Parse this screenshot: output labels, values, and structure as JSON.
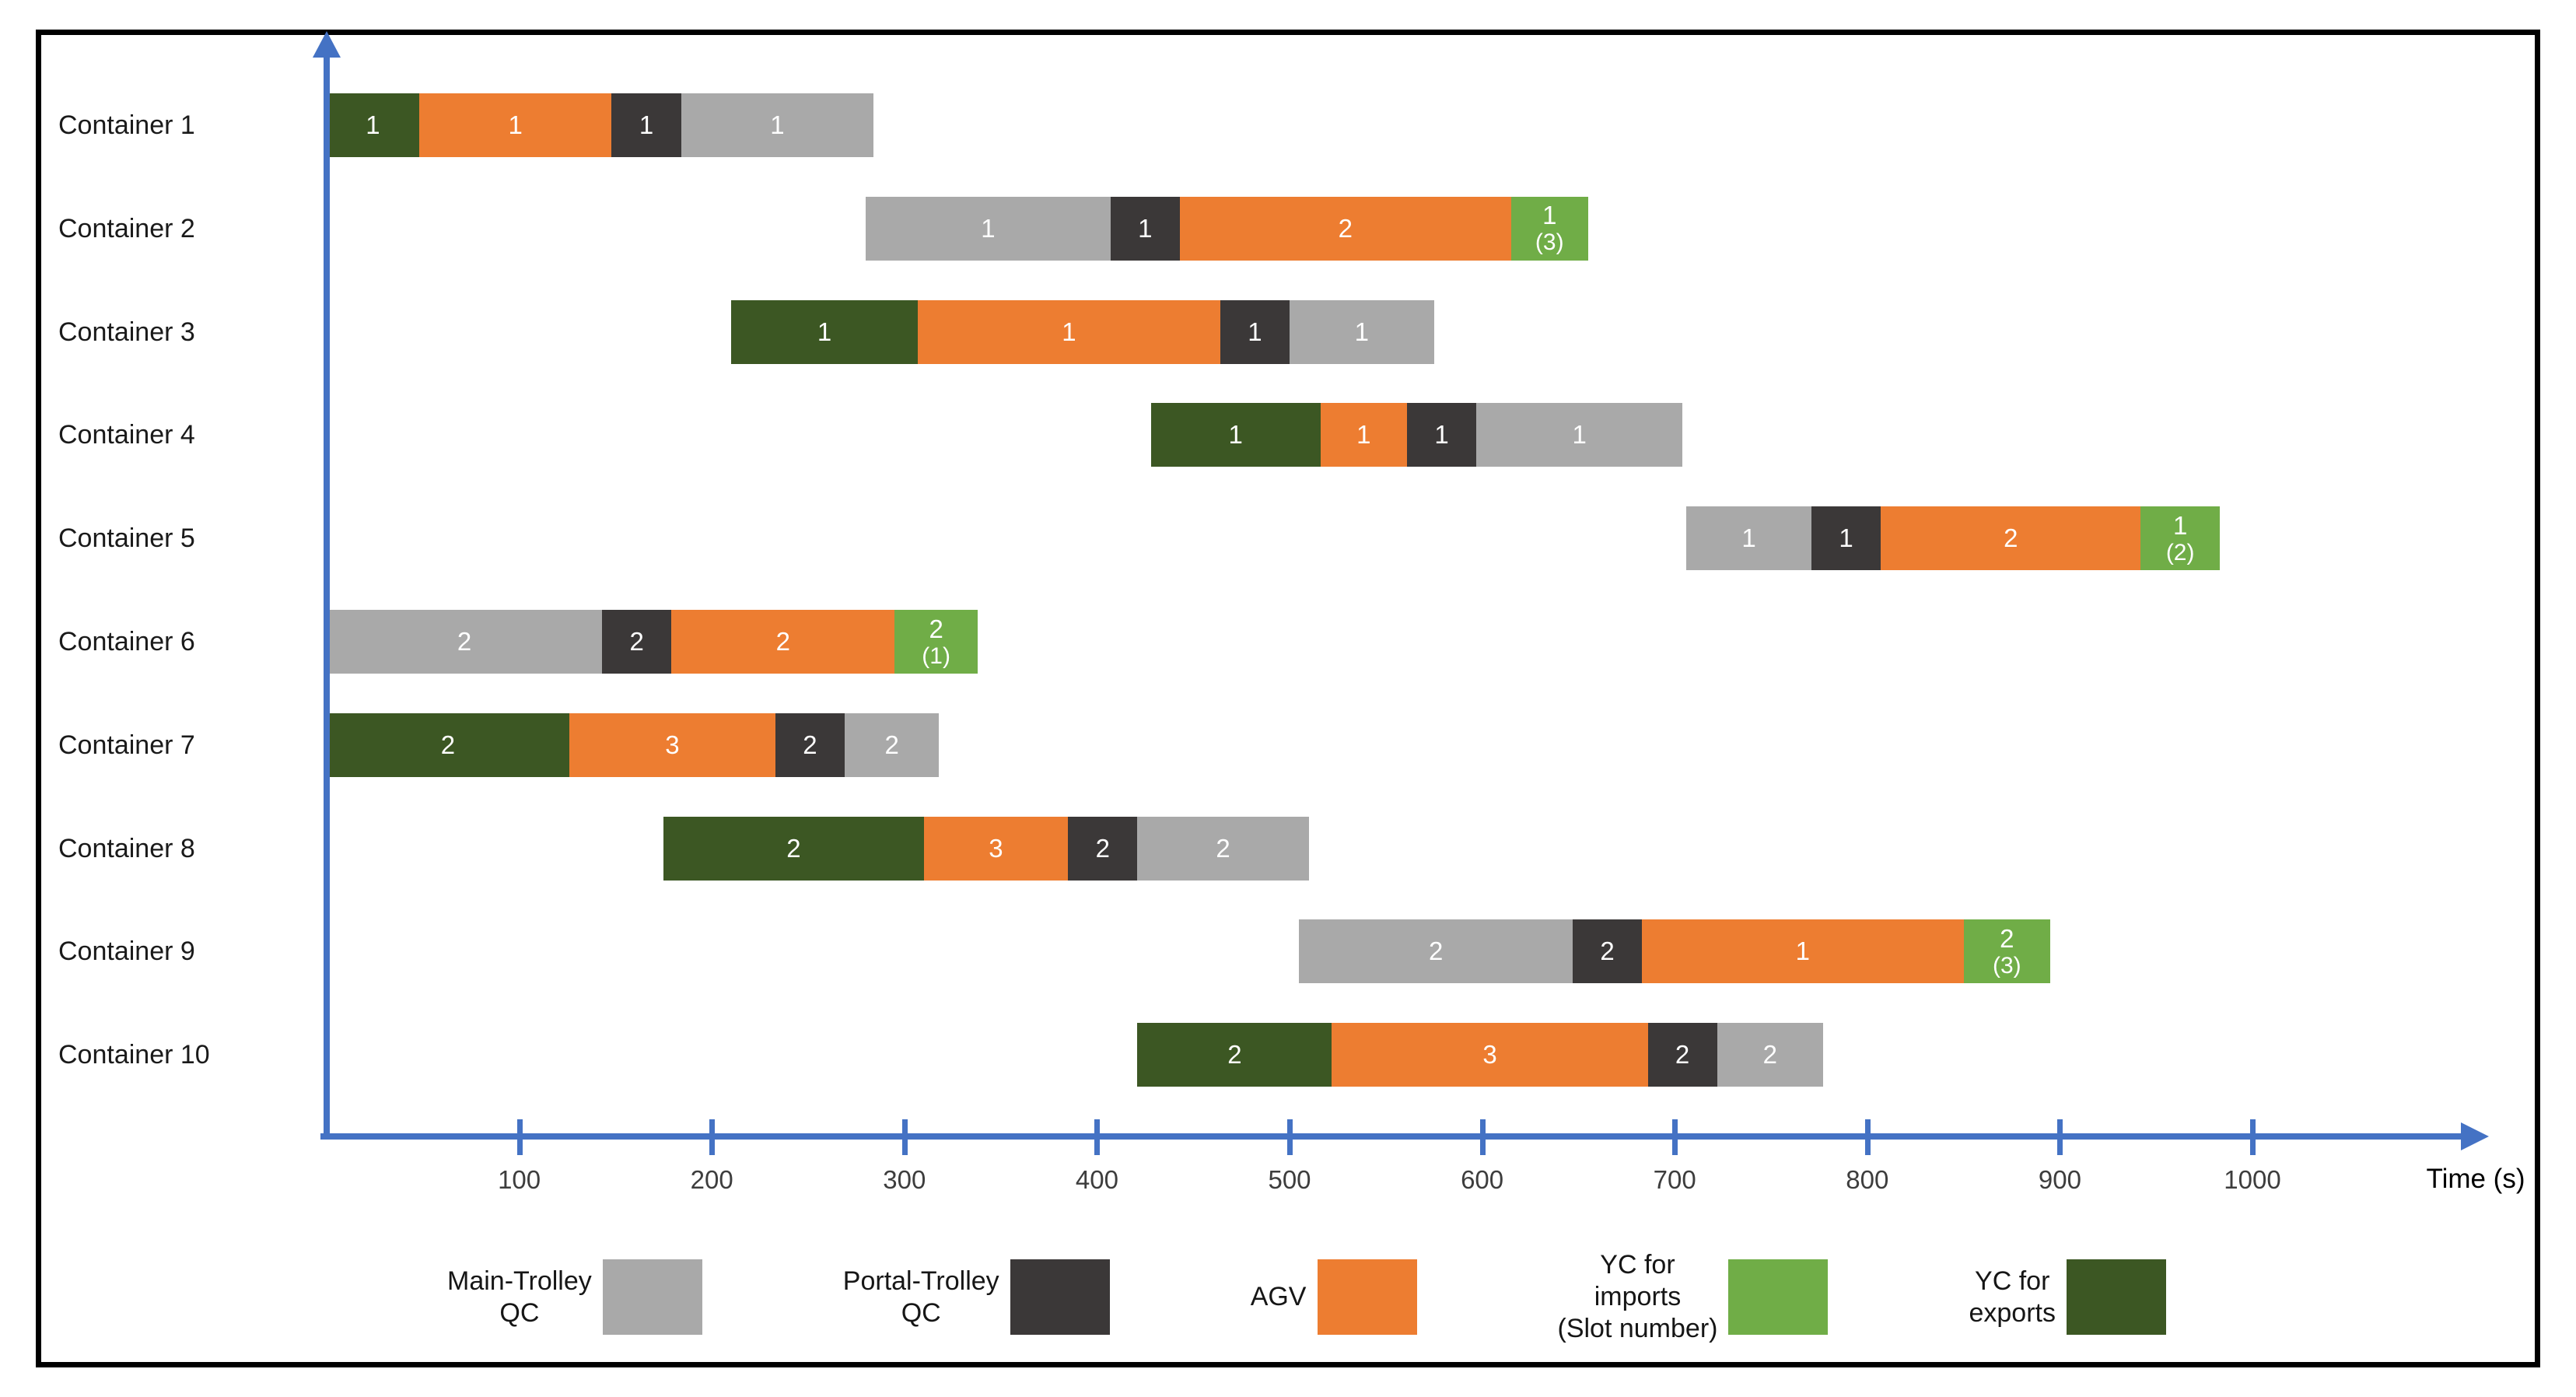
{
  "figure": {
    "time_axis_label": "Time (s)"
  },
  "palette": {
    "axis": "#4472C4",
    "tick_label": "#3D3D3D",
    "frame": "#000000",
    "background": "#FFFFFF",
    "segment_text": "#FFFFFF",
    "row_label": "#1A1A1A"
  },
  "resources": {
    "main_trolley_qc": {
      "name": "Main-Trolley QC",
      "color": "#A9A9A9"
    },
    "portal_trolley_qc": {
      "name": "Portal-Trolley QC",
      "color": "#3B3838"
    },
    "agv": {
      "name": "AGV",
      "color": "#ED7D31"
    },
    "yc_imports": {
      "name": "YC for imports (Slot number)",
      "color": "#70AD47"
    },
    "yc_exports": {
      "name": "YC for exports",
      "color": "#3C5723"
    }
  },
  "legend": [
    {
      "resource": "main_trolley_qc",
      "lines": "Main-Trolley\nQC"
    },
    {
      "resource": "portal_trolley_qc",
      "lines": "Portal-Trolley\nQC"
    },
    {
      "resource": "agv",
      "lines": "AGV"
    },
    {
      "resource": "yc_imports",
      "lines": "YC for\nimports\n(Slot number)"
    },
    {
      "resource": "yc_exports",
      "lines": "YC for\nexports"
    }
  ],
  "chart_data": {
    "type": "gantt",
    "title": "",
    "xlabel": "Time (s)",
    "ylabel": "",
    "xlim": [
      0,
      1080
    ],
    "x_ticks": [
      100,
      200,
      300,
      400,
      500,
      600,
      700,
      800,
      900,
      1000
    ],
    "grid": false,
    "legend_position": "bottom",
    "rows": [
      {
        "label": "Container 1",
        "segments": [
          {
            "resource": "yc_exports",
            "start": 0,
            "end": 48,
            "label": "1"
          },
          {
            "resource": "agv",
            "start": 48,
            "end": 148,
            "label": "1"
          },
          {
            "resource": "portal_trolley_qc",
            "start": 148,
            "end": 184,
            "label": "1"
          },
          {
            "resource": "main_trolley_qc",
            "start": 184,
            "end": 284,
            "label": "1"
          }
        ]
      },
      {
        "label": "Container 2",
        "segments": [
          {
            "resource": "main_trolley_qc",
            "start": 280,
            "end": 407,
            "label": "1"
          },
          {
            "resource": "portal_trolley_qc",
            "start": 407,
            "end": 443,
            "label": "1"
          },
          {
            "resource": "agv",
            "start": 443,
            "end": 615,
            "label": "2"
          },
          {
            "resource": "yc_imports",
            "start": 615,
            "end": 655,
            "label": "1",
            "slot": 3
          }
        ]
      },
      {
        "label": "Container 3",
        "segments": [
          {
            "resource": "yc_exports",
            "start": 210,
            "end": 307,
            "label": "1"
          },
          {
            "resource": "agv",
            "start": 307,
            "end": 464,
            "label": "1"
          },
          {
            "resource": "portal_trolley_qc",
            "start": 464,
            "end": 500,
            "label": "1"
          },
          {
            "resource": "main_trolley_qc",
            "start": 500,
            "end": 575,
            "label": "1"
          }
        ]
      },
      {
        "label": "Container 4",
        "segments": [
          {
            "resource": "yc_exports",
            "start": 428,
            "end": 516,
            "label": "1"
          },
          {
            "resource": "agv",
            "start": 516,
            "end": 561,
            "label": "1"
          },
          {
            "resource": "portal_trolley_qc",
            "start": 561,
            "end": 597,
            "label": "1"
          },
          {
            "resource": "main_trolley_qc",
            "start": 597,
            "end": 704,
            "label": "1"
          }
        ]
      },
      {
        "label": "Container 5",
        "segments": [
          {
            "resource": "main_trolley_qc",
            "start": 706,
            "end": 771,
            "label": "1"
          },
          {
            "resource": "portal_trolley_qc",
            "start": 771,
            "end": 807,
            "label": "1"
          },
          {
            "resource": "agv",
            "start": 807,
            "end": 942,
            "label": "2"
          },
          {
            "resource": "yc_imports",
            "start": 942,
            "end": 983,
            "label": "1",
            "slot": 2
          }
        ]
      },
      {
        "label": "Container 6",
        "segments": [
          {
            "resource": "main_trolley_qc",
            "start": 0,
            "end": 143,
            "label": "2"
          },
          {
            "resource": "portal_trolley_qc",
            "start": 143,
            "end": 179,
            "label": "2"
          },
          {
            "resource": "agv",
            "start": 179,
            "end": 295,
            "label": "2"
          },
          {
            "resource": "yc_imports",
            "start": 295,
            "end": 338,
            "label": "2",
            "slot": 1
          }
        ]
      },
      {
        "label": "Container 7",
        "segments": [
          {
            "resource": "yc_exports",
            "start": 0,
            "end": 126,
            "label": "2"
          },
          {
            "resource": "agv",
            "start": 126,
            "end": 233,
            "label": "3"
          },
          {
            "resource": "portal_trolley_qc",
            "start": 233,
            "end": 269,
            "label": "2"
          },
          {
            "resource": "main_trolley_qc",
            "start": 269,
            "end": 318,
            "label": "2"
          }
        ]
      },
      {
        "label": "Container 8",
        "segments": [
          {
            "resource": "yc_exports",
            "start": 175,
            "end": 310,
            "label": "2"
          },
          {
            "resource": "agv",
            "start": 310,
            "end": 385,
            "label": "3"
          },
          {
            "resource": "portal_trolley_qc",
            "start": 385,
            "end": 421,
            "label": "2"
          },
          {
            "resource": "main_trolley_qc",
            "start": 421,
            "end": 510,
            "label": "2"
          }
        ]
      },
      {
        "label": "Container 9",
        "segments": [
          {
            "resource": "main_trolley_qc",
            "start": 505,
            "end": 647,
            "label": "2"
          },
          {
            "resource": "portal_trolley_qc",
            "start": 647,
            "end": 683,
            "label": "2"
          },
          {
            "resource": "agv",
            "start": 683,
            "end": 850,
            "label": "1"
          },
          {
            "resource": "yc_imports",
            "start": 850,
            "end": 895,
            "label": "2",
            "slot": 3
          }
        ]
      },
      {
        "label": "Container 10",
        "segments": [
          {
            "resource": "yc_exports",
            "start": 421,
            "end": 522,
            "label": "2"
          },
          {
            "resource": "agv",
            "start": 522,
            "end": 686,
            "label": "3"
          },
          {
            "resource": "portal_trolley_qc",
            "start": 686,
            "end": 722,
            "label": "2"
          },
          {
            "resource": "main_trolley_qc",
            "start": 722,
            "end": 777,
            "label": "2"
          }
        ]
      }
    ]
  }
}
